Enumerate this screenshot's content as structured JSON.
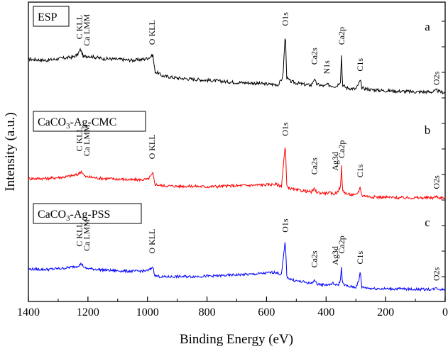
{
  "chart_data": {
    "type": "line",
    "xlabel": "Binding Energy (eV)",
    "ylabel": "Intensity (a.u.)",
    "xlim": [
      1400,
      0
    ],
    "x_reversed": true,
    "xticks": [
      "1400",
      "1200",
      "1000",
      "800",
      "600",
      "400",
      "200",
      "0"
    ],
    "xtick_values": [
      1400,
      1200,
      1000,
      800,
      600,
      400,
      200,
      0
    ],
    "grid": false,
    "panels": [
      {
        "letter": "a",
        "label_main": "ESP",
        "label_sub": "",
        "label_post": "",
        "color": "#000000",
        "series_points": [
          [
            1400,
            0.52
          ],
          [
            1340,
            0.5
          ],
          [
            1280,
            0.54
          ],
          [
            1250,
            0.56
          ],
          [
            1235,
            0.6
          ],
          [
            1225,
            0.7
          ],
          [
            1215,
            0.56
          ],
          [
            1200,
            0.58
          ],
          [
            1150,
            0.53
          ],
          [
            1100,
            0.52
          ],
          [
            1050,
            0.5
          ],
          [
            1010,
            0.52
          ],
          [
            990,
            0.56
          ],
          [
            982,
            0.6
          ],
          [
            975,
            0.3
          ],
          [
            950,
            0.22
          ],
          [
            900,
            0.18
          ],
          [
            850,
            0.16
          ],
          [
            800,
            0.14
          ],
          [
            750,
            0.12
          ],
          [
            700,
            0.1
          ],
          [
            650,
            0.09
          ],
          [
            600,
            0.07
          ],
          [
            560,
            0.06
          ],
          [
            545,
            0.2
          ],
          [
            537,
            1.0
          ],
          [
            532,
            0.18
          ],
          [
            520,
            0.12
          ],
          [
            500,
            0.09
          ],
          [
            470,
            0.06
          ],
          [
            450,
            0.05
          ],
          [
            440,
            0.16
          ],
          [
            432,
            0.07
          ],
          [
            420,
            0.05
          ],
          [
            405,
            0.03
          ],
          [
            398,
            0.06
          ],
          [
            380,
            0.04
          ],
          [
            365,
            0.03
          ],
          [
            352,
            0.12
          ],
          [
            348,
            0.6
          ],
          [
            345,
            0.05
          ],
          [
            330,
            0.0
          ],
          [
            300,
            -0.02
          ],
          [
            290,
            0.08
          ],
          [
            285,
            0.14
          ],
          [
            280,
            0.0
          ],
          [
            250,
            -0.03
          ],
          [
            200,
            -0.05
          ],
          [
            150,
            -0.06
          ],
          [
            100,
            -0.07
          ],
          [
            40,
            -0.07
          ],
          [
            28,
            -0.04
          ],
          [
            20,
            -0.07
          ],
          [
            0,
            -0.08
          ]
        ],
        "peaks": [
          {
            "text": "C KLL",
            "x": 1230,
            "amp": 0.88
          },
          {
            "text": "Ca LMM",
            "x": 1205,
            "amp": 0.76
          },
          {
            "text": "O KLL",
            "x": 985,
            "amp": 0.78
          },
          {
            "text": "O1s",
            "x": 538,
            "amp": 1.12
          },
          {
            "text": "Ca2s",
            "x": 440,
            "amp": 0.42
          },
          {
            "text": "N1s",
            "x": 398,
            "amp": 0.25
          },
          {
            "text": "Ca2p",
            "x": 348,
            "amp": 0.78
          },
          {
            "text": "C1s",
            "x": 286,
            "amp": 0.3
          },
          {
            "text": "O2s",
            "x": 30,
            "amp": 0.05
          }
        ]
      },
      {
        "letter": "b",
        "label_main": "CaCO",
        "label_sub": "3",
        "label_post": "-Ag-CMC",
        "color": "#ff0000",
        "series_points": [
          [
            1400,
            0.3
          ],
          [
            1340,
            0.3
          ],
          [
            1280,
            0.33
          ],
          [
            1250,
            0.36
          ],
          [
            1235,
            0.38
          ],
          [
            1222,
            0.45
          ],
          [
            1210,
            0.34
          ],
          [
            1150,
            0.3
          ],
          [
            1100,
            0.29
          ],
          [
            1050,
            0.27
          ],
          [
            1000,
            0.28
          ],
          [
            990,
            0.34
          ],
          [
            982,
            0.4
          ],
          [
            975,
            0.18
          ],
          [
            950,
            0.15
          ],
          [
            900,
            0.14
          ],
          [
            850,
            0.14
          ],
          [
            800,
            0.13
          ],
          [
            750,
            0.14
          ],
          [
            700,
            0.15
          ],
          [
            650,
            0.16
          ],
          [
            600,
            0.17
          ],
          [
            570,
            0.18
          ],
          [
            550,
            0.14
          ],
          [
            537,
            1.0
          ],
          [
            532,
            0.14
          ],
          [
            520,
            0.09
          ],
          [
            500,
            0.06
          ],
          [
            470,
            0.04
          ],
          [
            450,
            0.02
          ],
          [
            440,
            0.08
          ],
          [
            432,
            0.02
          ],
          [
            420,
            0.0
          ],
          [
            390,
            0.0
          ],
          [
            375,
            -0.02
          ],
          [
            365,
            0.0
          ],
          [
            352,
            0.12
          ],
          [
            348,
            0.55
          ],
          [
            345,
            0.05
          ],
          [
            330,
            -0.02
          ],
          [
            300,
            -0.05
          ],
          [
            290,
            0.04
          ],
          [
            285,
            0.12
          ],
          [
            280,
            -0.05
          ],
          [
            250,
            -0.08
          ],
          [
            200,
            -0.09
          ],
          [
            150,
            -0.1
          ],
          [
            100,
            -0.1
          ],
          [
            40,
            -0.1
          ],
          [
            28,
            -0.07
          ],
          [
            20,
            -0.1
          ],
          [
            0,
            -0.1
          ]
        ],
        "peaks": [
          {
            "text": "C KLL",
            "x": 1230,
            "amp": 0.86
          },
          {
            "text": "Ca LMM",
            "x": 1205,
            "amp": 0.76
          },
          {
            "text": "O KLL",
            "x": 985,
            "amp": 0.7
          },
          {
            "text": "O1s",
            "x": 538,
            "amp": 1.18
          },
          {
            "text": "Ca2s",
            "x": 440,
            "amp": 0.38
          },
          {
            "text": "Ag3d",
            "x": 370,
            "amp": 0.46
          },
          {
            "text": "Ca2p",
            "x": 348,
            "amp": 0.72
          },
          {
            "text": "C1s",
            "x": 286,
            "amp": 0.32
          },
          {
            "text": "O2s",
            "x": 30,
            "amp": 0.08
          }
        ]
      },
      {
        "letter": "c",
        "label_main": "CaCO",
        "label_sub": "3",
        "label_post": "-Ag-PSS",
        "color": "#0000ff",
        "series_points": [
          [
            1400,
            0.35
          ],
          [
            1340,
            0.34
          ],
          [
            1280,
            0.37
          ],
          [
            1250,
            0.4
          ],
          [
            1235,
            0.42
          ],
          [
            1222,
            0.47
          ],
          [
            1210,
            0.37
          ],
          [
            1150,
            0.33
          ],
          [
            1100,
            0.31
          ],
          [
            1050,
            0.3
          ],
          [
            1000,
            0.31
          ],
          [
            990,
            0.35
          ],
          [
            982,
            0.4
          ],
          [
            975,
            0.2
          ],
          [
            950,
            0.17
          ],
          [
            900,
            0.18
          ],
          [
            850,
            0.18
          ],
          [
            800,
            0.19
          ],
          [
            750,
            0.2
          ],
          [
            700,
            0.22
          ],
          [
            650,
            0.23
          ],
          [
            600,
            0.26
          ],
          [
            570,
            0.28
          ],
          [
            550,
            0.22
          ],
          [
            537,
            1.0
          ],
          [
            532,
            0.18
          ],
          [
            520,
            0.12
          ],
          [
            500,
            0.08
          ],
          [
            470,
            0.05
          ],
          [
            450,
            0.02
          ],
          [
            440,
            0.1
          ],
          [
            432,
            0.02
          ],
          [
            420,
            0.0
          ],
          [
            390,
            -0.01
          ],
          [
            375,
            0.03
          ],
          [
            368,
            -0.02
          ],
          [
            358,
            0.0
          ],
          [
            352,
            0.1
          ],
          [
            348,
            0.4
          ],
          [
            345,
            0.02
          ],
          [
            330,
            -0.04
          ],
          [
            300,
            -0.06
          ],
          [
            290,
            0.08
          ],
          [
            285,
            0.3
          ],
          [
            280,
            -0.06
          ],
          [
            250,
            -0.09
          ],
          [
            200,
            -0.1
          ],
          [
            150,
            -0.1
          ],
          [
            100,
            -0.11
          ],
          [
            40,
            -0.11
          ],
          [
            28,
            -0.08
          ],
          [
            20,
            -0.11
          ],
          [
            0,
            -0.11
          ]
        ],
        "peaks": [
          {
            "text": "C KLL",
            "x": 1230,
            "amp": 0.86
          },
          {
            "text": "Ca LMM",
            "x": 1205,
            "amp": 0.76
          },
          {
            "text": "O KLL",
            "x": 985,
            "amp": 0.7
          },
          {
            "text": "O1s",
            "x": 538,
            "amp": 1.18
          },
          {
            "text": "Ca2s",
            "x": 440,
            "amp": 0.38
          },
          {
            "text": "Ag3d",
            "x": 370,
            "amp": 0.44
          },
          {
            "text": "Ca2p",
            "x": 348,
            "amp": 0.7
          },
          {
            "text": "C1s",
            "x": 286,
            "amp": 0.46
          },
          {
            "text": "O2s",
            "x": 30,
            "amp": 0.08
          }
        ]
      }
    ]
  }
}
